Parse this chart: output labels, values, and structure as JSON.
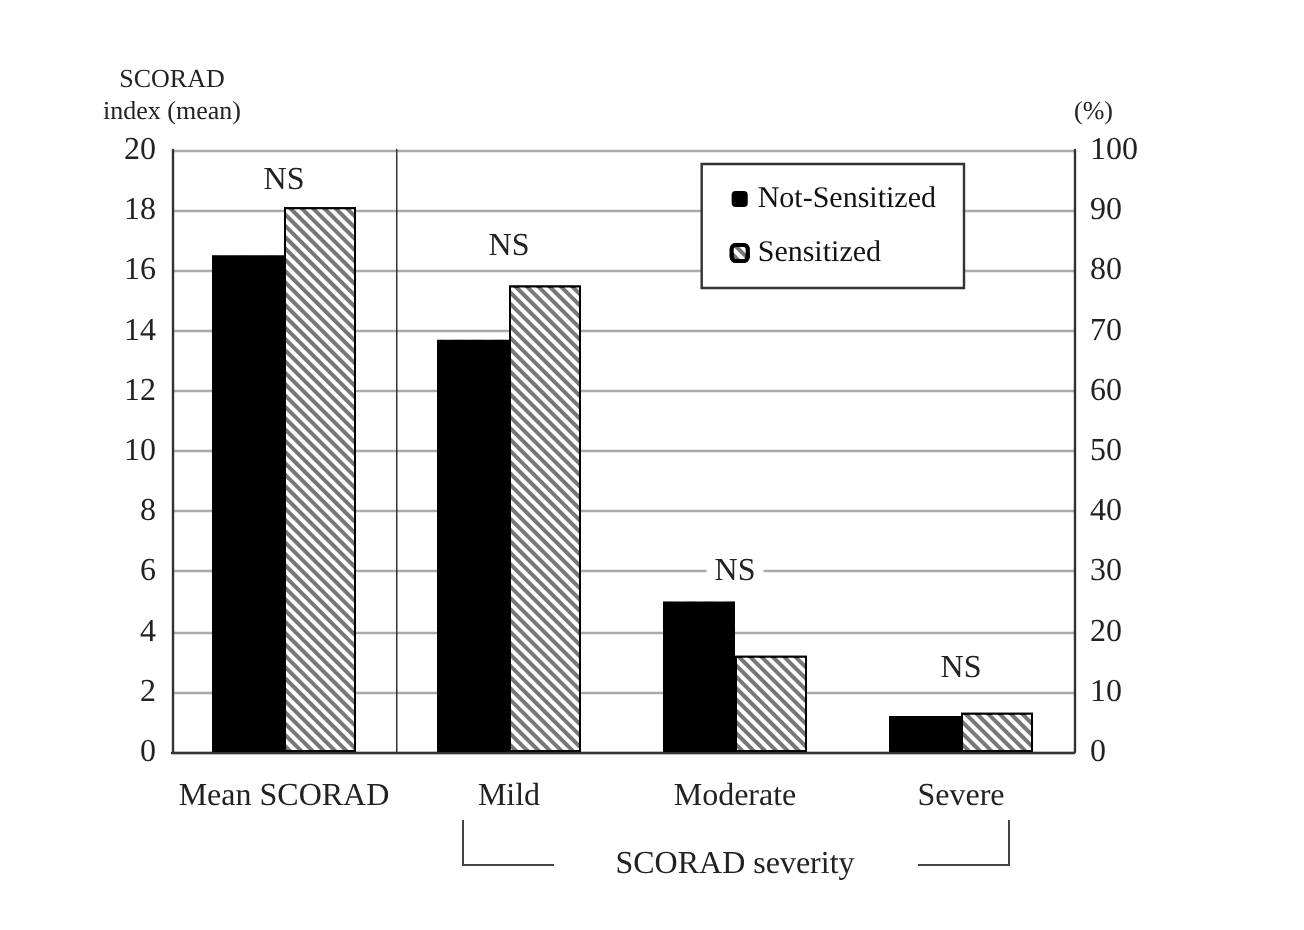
{
  "chart_data": [
    {
      "type": "bar",
      "ylabel": "SCORAD index (mean)",
      "categories": [
        "Mean SCORAD"
      ],
      "series": [
        {
          "color": "#000000",
          "values": [
            16.5
          ]
        },
        {
          "color": "#777777",
          "values": [
            18.1
          ]
        }
      ],
      "ylim": [
        0,
        20
      ],
      "yticks": [
        0,
        2,
        4,
        6,
        8,
        10,
        12,
        14,
        16,
        18,
        20
      ],
      "annotations": [
        {
          "text": "NS",
          "x": "Mean SCORAD",
          "y": 19
        }
      ],
      "grid": "y"
    },
    {
      "type": "bar",
      "ylabel": "(%)",
      "xlabel": "SCORAD severity",
      "categories": [
        "Mild",
        "Moderate",
        "Severe"
      ],
      "series": [
        {
          "name": "Not-Sensitized",
          "color": "#000000",
          "values": [
            68.5,
            25,
            6
          ]
        },
        {
          "name": "Sensitized",
          "color": "#777777",
          "values": [
            77.5,
            16,
            6.5
          ]
        }
      ],
      "ylim": [
        0,
        100
      ],
      "yticks": [
        0,
        10,
        20,
        30,
        40,
        50,
        60,
        70,
        80,
        90,
        100
      ],
      "annotations": [
        {
          "text": "NS",
          "x": "Mild",
          "y": 84
        },
        {
          "text": "NS",
          "x": "Moderate",
          "y": 30
        },
        {
          "text": "NS",
          "x": "Severe",
          "y": 14
        }
      ],
      "grid": "y",
      "legend": "top right"
    }
  ]
}
